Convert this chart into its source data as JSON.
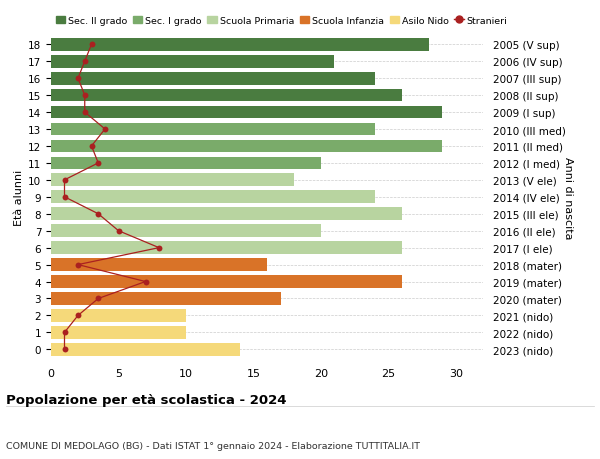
{
  "ages": [
    18,
    17,
    16,
    15,
    14,
    13,
    12,
    11,
    10,
    9,
    8,
    7,
    6,
    5,
    4,
    3,
    2,
    1,
    0
  ],
  "right_labels": [
    "2005 (V sup)",
    "2006 (IV sup)",
    "2007 (III sup)",
    "2008 (II sup)",
    "2009 (I sup)",
    "2010 (III med)",
    "2011 (II med)",
    "2012 (I med)",
    "2013 (V ele)",
    "2014 (IV ele)",
    "2015 (III ele)",
    "2016 (II ele)",
    "2017 (I ele)",
    "2018 (mater)",
    "2019 (mater)",
    "2020 (mater)",
    "2021 (nido)",
    "2022 (nido)",
    "2023 (nido)"
  ],
  "bar_values": [
    28,
    21,
    24,
    26,
    29,
    24,
    29,
    20,
    18,
    24,
    26,
    20,
    26,
    16,
    26,
    17,
    10,
    10,
    14
  ],
  "bar_colors": [
    "#4a7c40",
    "#4a7c40",
    "#4a7c40",
    "#4a7c40",
    "#4a7c40",
    "#7aab6a",
    "#7aab6a",
    "#7aab6a",
    "#b8d4a0",
    "#b8d4a0",
    "#b8d4a0",
    "#b8d4a0",
    "#b8d4a0",
    "#d97328",
    "#d97328",
    "#d97328",
    "#f5d97a",
    "#f5d97a",
    "#f5d97a"
  ],
  "stranieri_values": [
    3,
    2.5,
    2,
    2.5,
    2.5,
    4,
    3,
    3.5,
    1,
    1,
    3.5,
    5,
    8,
    2,
    7,
    3.5,
    2,
    1,
    1
  ],
  "stranieri_color": "#aa2020",
  "legend_labels": [
    "Sec. II grado",
    "Sec. I grado",
    "Scuola Primaria",
    "Scuola Infanzia",
    "Asilo Nido",
    "Stranieri"
  ],
  "legend_colors": [
    "#4a7c40",
    "#7aab6a",
    "#b8d4a0",
    "#d97328",
    "#f5d97a",
    "#aa2020"
  ],
  "ylabel_left": "Età alunni",
  "ylabel_right": "Anni di nascita",
  "xlim": [
    0,
    32
  ],
  "title": "Popolazione per età scolastica - 2024",
  "subtitle": "COMUNE DI MEDOLAGO (BG) - Dati ISTAT 1° gennaio 2024 - Elaborazione TUTTITALIA.IT",
  "bg_color": "#ffffff",
  "grid_color": "#cccccc",
  "bar_height": 0.75
}
